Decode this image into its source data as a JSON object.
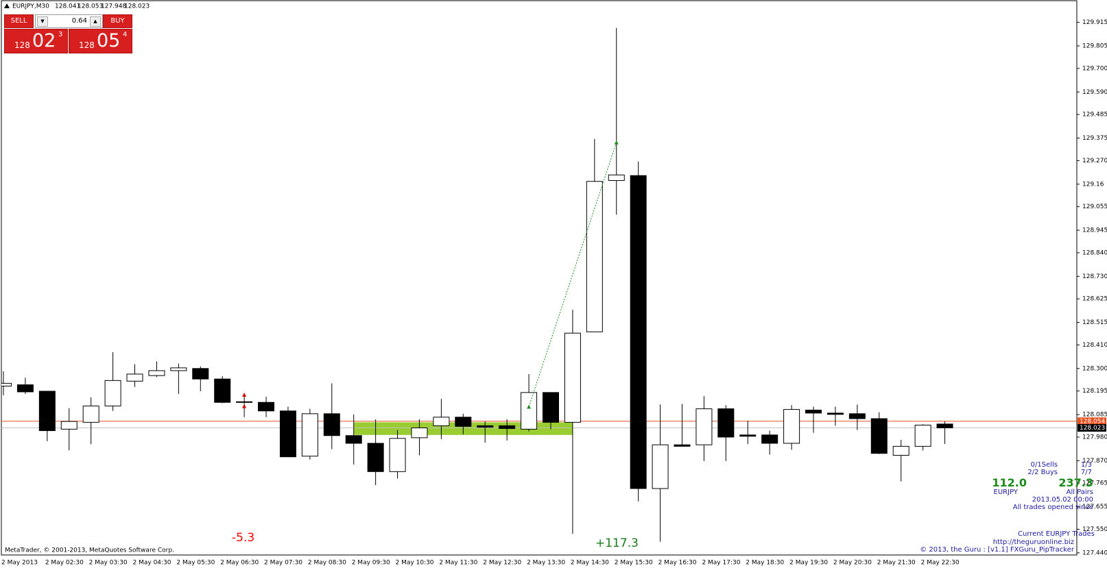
{
  "chart_data": {
    "type": "candlestick",
    "symbol": "EURJPY,M30",
    "categories": [
      "2 May 2013",
      null,
      "2 May 02:30",
      null,
      "2 May 03:30",
      null,
      "2 May 04:30",
      null,
      "2 May 05:30",
      null,
      "2 May 06:30",
      null,
      "2 May 07:30",
      null,
      "2 May 08:30",
      null,
      "2 May 09:30",
      null,
      "2 May 10:30",
      null,
      "2 May 11:30",
      null,
      "2 May 12:30",
      null,
      "2 May 13:30",
      null,
      "2 May 14:30",
      null,
      "2 May 15:30",
      null,
      "2 May 16:30",
      null,
      "2 May 17:30",
      null,
      "2 May 18:30",
      null,
      "2 May 19:30",
      null,
      "2 May 20:30",
      null,
      "2 May 21:30",
      null,
      "2 May 22:30",
      null
    ],
    "open": [
      128.218,
      128.224,
      128.194,
      128.017,
      128.049,
      128.125,
      128.241,
      128.267,
      128.29,
      128.3,
      128.251,
      128.145,
      128.142,
      128.102,
      127.891,
      128.089,
      127.987,
      127.951,
      127.819,
      127.977,
      128.033,
      128.073,
      128.033,
      128.033,
      128.017,
      128.188,
      128.049,
      128.471,
      129.177,
      129.2,
      127.74,
      127.944,
      127.944,
      128.112,
      127.99,
      127.99,
      127.951,
      128.106,
      128.092,
      128.089,
      128.066,
      127.895,
      127.937,
      128.041
    ],
    "high": [
      128.287,
      128.257,
      128.194,
      128.115,
      128.165,
      128.376,
      128.32,
      128.333,
      128.323,
      128.31,
      128.264,
      128.178,
      128.168,
      128.122,
      128.112,
      128.231,
      128.086,
      128.063,
      128.013,
      128.063,
      128.158,
      128.089,
      128.053,
      128.063,
      128.274,
      128.188,
      128.574,
      129.371,
      129.889,
      129.266,
      128.132,
      128.135,
      128.171,
      128.129,
      128.056,
      128.01,
      128.129,
      128.122,
      128.122,
      128.132,
      128.096,
      127.967,
      128.04,
      128.053
    ],
    "low": [
      128.175,
      128.181,
      127.961,
      127.918,
      127.947,
      128.102,
      128.214,
      128.26,
      128.181,
      128.194,
      128.138,
      128.073,
      128.073,
      127.888,
      127.875,
      127.924,
      127.852,
      127.756,
      127.786,
      127.895,
      127.97,
      127.993,
      127.954,
      127.964,
      128.007,
      128.017,
      127.529,
      128.471,
      129.018,
      127.68,
      127.492,
      127.937,
      127.868,
      127.868,
      127.947,
      127.898,
      127.921,
      128.0,
      128.033,
      128.013,
      127.901,
      127.773,
      127.918,
      127.948
    ],
    "close": [
      128.231,
      128.191,
      128.01,
      128.053,
      128.125,
      128.244,
      128.274,
      128.29,
      128.303,
      128.251,
      128.142,
      128.142,
      128.102,
      127.888,
      128.089,
      127.987,
      127.951,
      127.819,
      127.974,
      128.023,
      128.073,
      128.03,
      128.026,
      128.02,
      128.188,
      128.049,
      128.465,
      129.173,
      129.203,
      127.74,
      127.944,
      127.937,
      128.112,
      127.98,
      127.984,
      127.951,
      128.109,
      128.092,
      128.086,
      128.066,
      127.904,
      127.937,
      128.036,
      128.023
    ],
    "up_color": "#ffffff",
    "down_color": "#000000",
    "wick_color": "#000000",
    "ylim": [
      127.43,
      130.0
    ],
    "yticks": [
      129.915,
      129.805,
      {
        "value": 129.7,
        "label": "129.700"
      },
      {
        "value": 129.59,
        "label": "129.590"
      },
      129.485,
      129.375,
      {
        "value": 129.27,
        "label": "129.270"
      },
      129.16,
      129.055,
      128.945,
      {
        "value": 128.84,
        "label": "128.840"
      },
      {
        "value": 128.73,
        "label": "128.730"
      },
      128.625,
      128.515,
      {
        "value": 128.41,
        "label": "128.410"
      },
      {
        "value": 128.3,
        "label": "128.300"
      },
      128.195,
      128.085,
      {
        "value": 127.98,
        "label": "127.980"
      },
      {
        "value": 127.87,
        "label": "127.870"
      },
      127.765,
      127.655,
      {
        "value": 127.55,
        "label": "127.550"
      },
      {
        "value": 127.44,
        "label": "127.440"
      }
    ],
    "price_lines": [
      {
        "value": 128.054,
        "color": "#e8501e"
      },
      {
        "value": 128.023,
        "color": "#000000"
      }
    ],
    "highlight": {
      "start": 16,
      "end": 26,
      "top": 128.049,
      "bottom": 127.99,
      "color": "#9acd32"
    },
    "trades": [
      {
        "from": 24,
        "open": 128.122,
        "to": 28,
        "close": 129.355,
        "color": "#1e8c1e"
      },
      {
        "from": 11,
        "open": 128.178,
        "to": 11,
        "close": 128.125,
        "color": "#e00000"
      }
    ],
    "annotations": [
      {
        "text": "-5.3",
        "color": "#ff0000"
      },
      {
        "text": "+117.3",
        "color": "#1a7a1a"
      }
    ],
    "watermark": "MetaTrader, © 2001-2013, MetaQuotes Software Corp."
  },
  "trade_panel": {
    "sell": "SELL",
    "buy": "BUY",
    "lot": "0.64",
    "bid": {
      "big": "128",
      "pips": "02",
      "point": "3"
    },
    "ask": {
      "big": "128",
      "pips": "05",
      "point": "4"
    }
  },
  "tracker": {
    "sells": "0/1Sells",
    "sells_ratio": "1/3",
    "buys": "2/2 Buys",
    "buys_ratio": "7/7",
    "pair_pips": "112.0",
    "all_pips": "237.3",
    "pair": "EURJPY",
    "all_label": "All Pairs",
    "since_date": "2013.05.02 00:00",
    "since_label": "All trades opened since",
    "title": "Current EURJPY Trades",
    "url": "http://theguruonline.biz",
    "credit": "© 2013, the Guru : [v1.1] FXGuru_PipTracker"
  }
}
